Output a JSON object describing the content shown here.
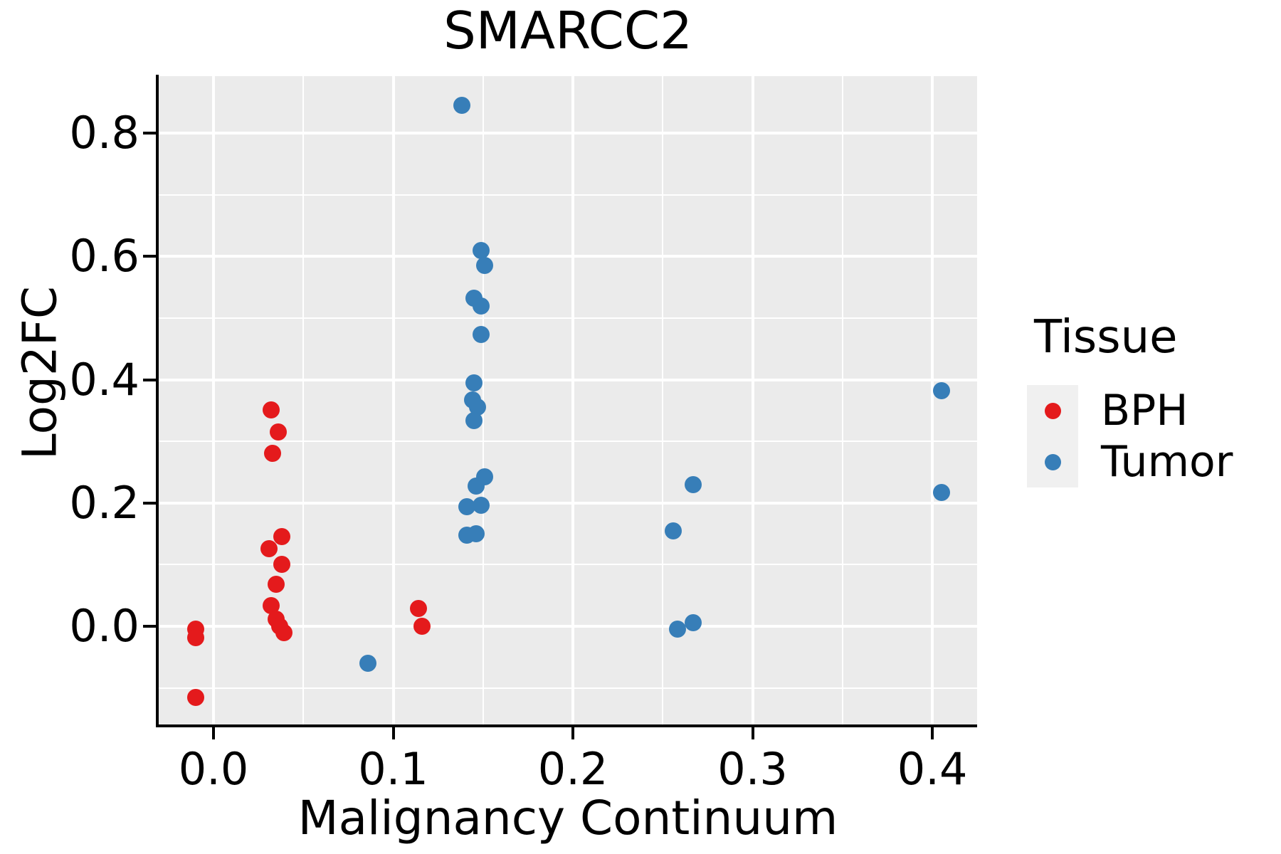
{
  "title": "SMARCC2",
  "axes": {
    "x": {
      "label": "Malignancy Continuum",
      "ticks": [
        0.0,
        0.1,
        0.2,
        0.3,
        0.4
      ],
      "tick_labels": [
        "0.0",
        "0.1",
        "0.2",
        "0.3",
        "0.4"
      ],
      "minor_ticks": [
        0.05,
        0.15,
        0.25,
        0.35
      ],
      "lim": [
        -0.0305,
        0.4249
      ]
    },
    "y": {
      "label": "Log2FC",
      "ticks": [
        0.0,
        0.2,
        0.4,
        0.6,
        0.8
      ],
      "tick_labels": [
        "0.0",
        "0.2",
        "0.4",
        "0.6",
        "0.8"
      ],
      "minor_ticks": [
        -0.1,
        0.1,
        0.3,
        0.5,
        0.7
      ],
      "lim": [
        -0.1594,
        0.8926
      ]
    }
  },
  "legend": {
    "title": "Tissue",
    "items": [
      {
        "label": "BPH",
        "color": "#E41A1C"
      },
      {
        "label": "Tumor",
        "color": "#377EB8"
      }
    ]
  },
  "colors": {
    "panel_bg": "#EBEBEB",
    "grid": "#FFFFFF",
    "axis": "#000000",
    "bph": "#E41A1C",
    "tumor": "#377EB8"
  },
  "chart_data": {
    "type": "scatter",
    "title": "SMARCC2",
    "xlabel": "Malignancy Continuum",
    "ylabel": "Log2FC",
    "xlim": [
      -0.0305,
      0.4249
    ],
    "ylim": [
      -0.1594,
      0.8926
    ],
    "grid": true,
    "legend_title": "Tissue",
    "legend_position": "right",
    "series": [
      {
        "name": "BPH",
        "color": "#E41A1C",
        "points": [
          [
            -0.01,
            -0.005
          ],
          [
            -0.01,
            -0.018
          ],
          [
            -0.01,
            -0.115
          ],
          [
            0.032,
            0.351
          ],
          [
            0.036,
            0.315
          ],
          [
            0.033,
            0.28
          ],
          [
            0.038,
            0.145
          ],
          [
            0.031,
            0.126
          ],
          [
            0.038,
            0.101
          ],
          [
            0.035,
            0.068
          ],
          [
            0.032,
            0.034
          ],
          [
            0.035,
            0.011
          ],
          [
            0.037,
            0.0
          ],
          [
            0.039,
            -0.011
          ],
          [
            0.114,
            0.029
          ],
          [
            0.116,
            0.0
          ]
        ]
      },
      {
        "name": "Tumor",
        "color": "#377EB8",
        "points": [
          [
            0.086,
            -0.06
          ],
          [
            0.138,
            0.845
          ],
          [
            0.149,
            0.61
          ],
          [
            0.151,
            0.585
          ],
          [
            0.145,
            0.532
          ],
          [
            0.149,
            0.52
          ],
          [
            0.149,
            0.473
          ],
          [
            0.145,
            0.395
          ],
          [
            0.144,
            0.367
          ],
          [
            0.147,
            0.356
          ],
          [
            0.145,
            0.334
          ],
          [
            0.151,
            0.243
          ],
          [
            0.146,
            0.228
          ],
          [
            0.141,
            0.194
          ],
          [
            0.149,
            0.196
          ],
          [
            0.141,
            0.148
          ],
          [
            0.146,
            0.15
          ],
          [
            0.267,
            0.23
          ],
          [
            0.256,
            0.155
          ],
          [
            0.267,
            0.006
          ],
          [
            0.258,
            -0.005
          ],
          [
            0.405,
            0.382
          ],
          [
            0.405,
            0.217
          ]
        ]
      }
    ]
  }
}
